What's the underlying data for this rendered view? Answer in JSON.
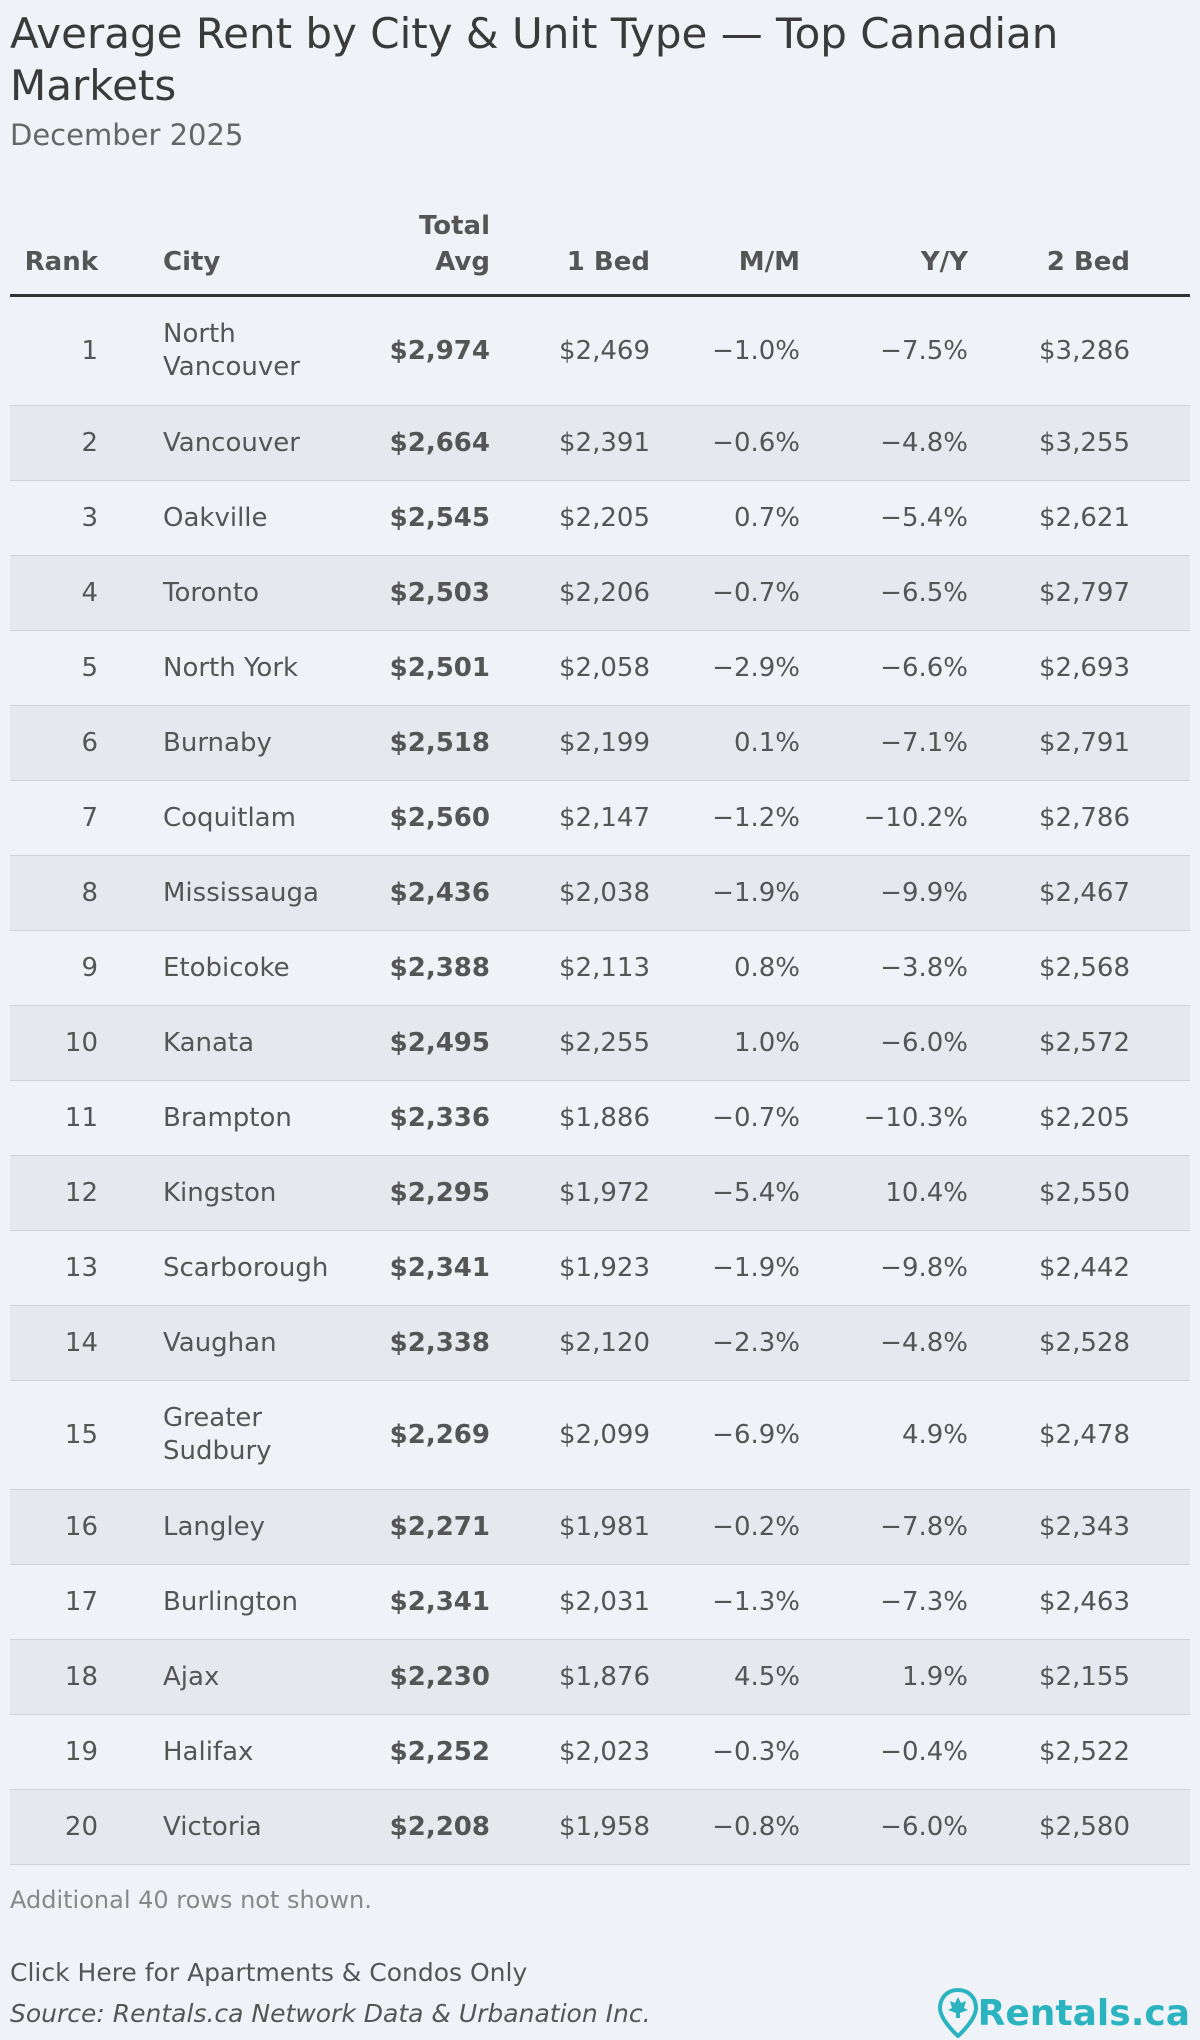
{
  "header": {
    "title": "Average Rent by City & Unit Type — Top Canadian Markets",
    "subtitle": "December 2025"
  },
  "table": {
    "columns": [
      "Rank",
      "City",
      "Total Avg",
      "1 Bed",
      "M/M",
      "Y/Y",
      "2 Bed"
    ],
    "rows": [
      [
        "1",
        "North Vancouver",
        "$2,974",
        "$2,469",
        "−1.0%",
        "−7.5%",
        "$3,286"
      ],
      [
        "2",
        "Vancouver",
        "$2,664",
        "$2,391",
        "−0.6%",
        "−4.8%",
        "$3,255"
      ],
      [
        "3",
        "Oakville",
        "$2,545",
        "$2,205",
        "0.7%",
        "−5.4%",
        "$2,621"
      ],
      [
        "4",
        "Toronto",
        "$2,503",
        "$2,206",
        "−0.7%",
        "−6.5%",
        "$2,797"
      ],
      [
        "5",
        "North York",
        "$2,501",
        "$2,058",
        "−2.9%",
        "−6.6%",
        "$2,693"
      ],
      [
        "6",
        "Burnaby",
        "$2,518",
        "$2,199",
        "0.1%",
        "−7.1%",
        "$2,791"
      ],
      [
        "7",
        "Coquitlam",
        "$2,560",
        "$2,147",
        "−1.2%",
        "−10.2%",
        "$2,786"
      ],
      [
        "8",
        "Mississauga",
        "$2,436",
        "$2,038",
        "−1.9%",
        "−9.9%",
        "$2,467"
      ],
      [
        "9",
        "Etobicoke",
        "$2,388",
        "$2,113",
        "0.8%",
        "−3.8%",
        "$2,568"
      ],
      [
        "10",
        "Kanata",
        "$2,495",
        "$2,255",
        "1.0%",
        "−6.0%",
        "$2,572"
      ],
      [
        "11",
        "Brampton",
        "$2,336",
        "$1,886",
        "−0.7%",
        "−10.3%",
        "$2,205"
      ],
      [
        "12",
        "Kingston",
        "$2,295",
        "$1,972",
        "−5.4%",
        "10.4%",
        "$2,550"
      ],
      [
        "13",
        "Scarborough",
        "$2,341",
        "$1,923",
        "−1.9%",
        "−9.8%",
        "$2,442"
      ],
      [
        "14",
        "Vaughan",
        "$2,338",
        "$2,120",
        "−2.3%",
        "−4.8%",
        "$2,528"
      ],
      [
        "15",
        "Greater Sudbury",
        "$2,269",
        "$2,099",
        "−6.9%",
        "4.9%",
        "$2,478"
      ],
      [
        "16",
        "Langley",
        "$2,271",
        "$1,981",
        "−0.2%",
        "−7.8%",
        "$2,343"
      ],
      [
        "17",
        "Burlington",
        "$2,341",
        "$2,031",
        "−1.3%",
        "−7.3%",
        "$2,463"
      ],
      [
        "18",
        "Ajax",
        "$2,230",
        "$1,876",
        "4.5%",
        "1.9%",
        "$2,155"
      ],
      [
        "19",
        "Halifax",
        "$2,252",
        "$2,023",
        "−0.3%",
        "−0.4%",
        "$2,522"
      ],
      [
        "20",
        "Victoria",
        "$2,208",
        "$1,958",
        "−0.8%",
        "−6.0%",
        "$2,580"
      ]
    ],
    "note": "Additional 40 rows not shown."
  },
  "footer": {
    "link": "Click Here for Apartments & Condos Only",
    "source": "Source: Rentals.ca Network Data & Urbanation Inc.",
    "logo": "Rentals.ca"
  }
}
